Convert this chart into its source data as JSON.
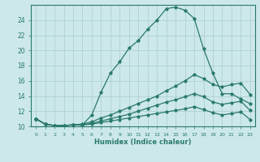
{
  "xlabel": "Humidex (Indice chaleur)",
  "background_color": "#cce8e8",
  "grid_color": "#aacccc",
  "line_color": "#2a7a6a",
  "xlim": [
    -0.5,
    23.5
  ],
  "ylim": [
    10,
    26
  ],
  "yticks": [
    10,
    12,
    14,
    16,
    18,
    20,
    22,
    24
  ],
  "xticks": [
    0,
    1,
    2,
    3,
    4,
    5,
    6,
    7,
    8,
    9,
    10,
    11,
    12,
    13,
    14,
    15,
    16,
    17,
    18,
    19,
    20,
    21,
    22,
    23
  ],
  "series": [
    {
      "x": [
        0,
        1,
        2,
        3,
        4,
        5,
        6,
        7,
        8,
        9,
        10,
        11,
        12,
        13,
        14,
        15,
        16,
        17,
        18,
        19,
        20,
        21,
        22,
        23
      ],
      "y": [
        11,
        10.3,
        10.1,
        10.1,
        10.2,
        10.2,
        11.5,
        14.5,
        17.0,
        18.5,
        20.3,
        21.3,
        22.8,
        24.0,
        25.5,
        25.7,
        25.3,
        24.2,
        20.2,
        17.0,
        14.3,
        14.3,
        13.6,
        13.0
      ]
    },
    {
      "x": [
        0,
        1,
        2,
        3,
        4,
        5,
        6,
        7,
        8,
        9,
        10,
        11,
        12,
        13,
        14,
        15,
        16,
        17,
        18,
        19,
        20,
        21,
        22,
        23
      ],
      "y": [
        11,
        10.3,
        10.1,
        10.1,
        10.2,
        10.3,
        10.6,
        11.1,
        11.5,
        12.0,
        12.5,
        13.0,
        13.5,
        14.0,
        14.7,
        15.3,
        16.0,
        16.8,
        16.3,
        15.5,
        15.2,
        15.5,
        15.7,
        14.2
      ]
    },
    {
      "x": [
        0,
        1,
        2,
        3,
        4,
        5,
        6,
        7,
        8,
        9,
        10,
        11,
        12,
        13,
        14,
        15,
        16,
        17,
        18,
        19,
        20,
        21,
        22,
        23
      ],
      "y": [
        11,
        10.3,
        10.1,
        10.1,
        10.2,
        10.2,
        10.4,
        10.7,
        11.0,
        11.3,
        11.6,
        12.0,
        12.4,
        12.8,
        13.2,
        13.5,
        13.9,
        14.3,
        13.9,
        13.2,
        12.9,
        13.1,
        13.3,
        12.1
      ]
    },
    {
      "x": [
        0,
        1,
        2,
        3,
        4,
        5,
        6,
        7,
        8,
        9,
        10,
        11,
        12,
        13,
        14,
        15,
        16,
        17,
        18,
        19,
        20,
        21,
        22,
        23
      ],
      "y": [
        11,
        10.3,
        10.1,
        10.1,
        10.2,
        10.2,
        10.3,
        10.5,
        10.7,
        10.9,
        11.1,
        11.3,
        11.5,
        11.7,
        11.9,
        12.1,
        12.3,
        12.6,
        12.2,
        11.8,
        11.5,
        11.7,
        11.9,
        10.9
      ]
    }
  ]
}
